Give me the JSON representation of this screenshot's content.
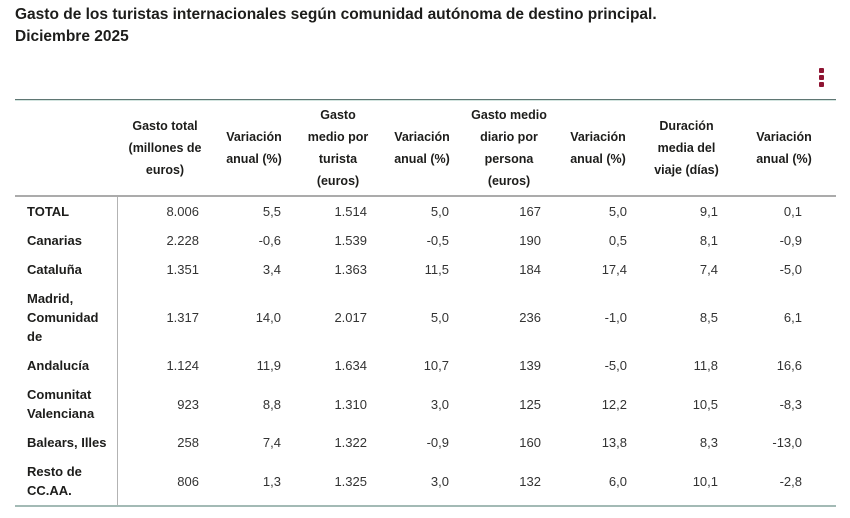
{
  "chart_data": {
    "type": "table",
    "title": "Gasto de los turistas internacionales según comunidad autónoma de destino principal.",
    "subtitle": "Diciembre 2025",
    "columns": [
      {
        "label": "",
        "lines": [
          ""
        ]
      },
      {
        "label": "Gasto total (millones de euros)",
        "lines": [
          "Gasto total",
          "(millones de",
          "euros)"
        ]
      },
      {
        "label": "Variación anual (%)",
        "lines": [
          "Variación",
          "anual (%)"
        ]
      },
      {
        "label": "Gasto medio por turista (euros)",
        "lines": [
          "Gasto",
          "medio por",
          "turista",
          "(euros)"
        ]
      },
      {
        "label": "Variación anual (%)",
        "lines": [
          "Variación",
          "anual (%)"
        ]
      },
      {
        "label": "Gasto medio diario por persona (euros)",
        "lines": [
          "Gasto medio",
          "diario por",
          "persona",
          "(euros)"
        ]
      },
      {
        "label": "Variación anual (%)",
        "lines": [
          "Variación",
          "anual (%)"
        ]
      },
      {
        "label": "Duración media del viaje (días)",
        "lines": [
          "Duración",
          "media del",
          "viaje (días)"
        ]
      },
      {
        "label": "Variación anual (%)",
        "lines": [
          "Variación",
          "anual (%)"
        ]
      }
    ],
    "rows": [
      {
        "label": "TOTAL",
        "values": [
          "8.006",
          "5,5",
          "1.514",
          "5,0",
          "167",
          "5,0",
          "9,1",
          "0,1"
        ]
      },
      {
        "label": "Canarias",
        "values": [
          "2.228",
          "-0,6",
          "1.539",
          "-0,5",
          "190",
          "0,5",
          "8,1",
          "-0,9"
        ]
      },
      {
        "label": "Cataluña",
        "values": [
          "1.351",
          "3,4",
          "1.363",
          "11,5",
          "184",
          "17,4",
          "7,4",
          "-5,0"
        ]
      },
      {
        "label": "Madrid, Comunidad de",
        "values": [
          "1.317",
          "14,0",
          "2.017",
          "5,0",
          "236",
          "-1,0",
          "8,5",
          "6,1"
        ]
      },
      {
        "label": "Andalucía",
        "values": [
          "1.124",
          "11,9",
          "1.634",
          "10,7",
          "139",
          "-5,0",
          "11,8",
          "16,6"
        ]
      },
      {
        "label": "Comunitat Valenciana",
        "values": [
          "923",
          "8,8",
          "1.310",
          "3,0",
          "125",
          "12,2",
          "10,5",
          "-8,3"
        ]
      },
      {
        "label": "Balears, Illes",
        "values": [
          "258",
          "7,4",
          "1.322",
          "-0,9",
          "160",
          "13,8",
          "8,3",
          "-13,0"
        ]
      },
      {
        "label": "Resto de CC.AA.",
        "values": [
          "806",
          "1,3",
          "1.325",
          "3,0",
          "132",
          "6,0",
          "10,1",
          "-2,8"
        ]
      }
    ],
    "layout": {
      "legend": "none",
      "grid": "off",
      "first_column_separator": true
    }
  },
  "menu": {
    "icon": "kebab-vertical-ellipsis"
  },
  "colors": {
    "accent_menu": "#8e1432",
    "border_teal": "#a3bab5",
    "border_gray": "#ababab",
    "text": "#1d1d1b"
  }
}
